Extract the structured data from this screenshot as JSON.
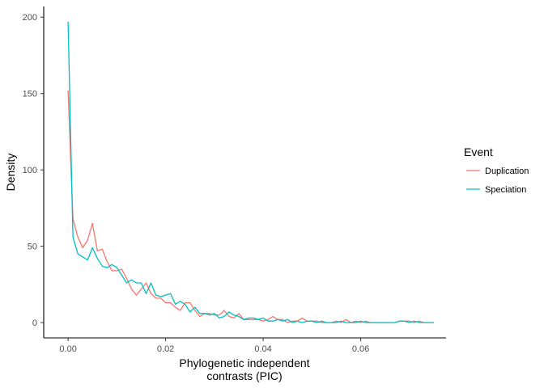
{
  "chart_data": {
    "type": "line",
    "title": "",
    "xlabel_lines": [
      "Phylogenetic independent",
      "contrasts (PIC)"
    ],
    "ylabel": "Density",
    "xlim": [
      -0.005,
      0.0775
    ],
    "ylim": [
      -10,
      207
    ],
    "x_ticks": [
      0.0,
      0.02,
      0.04,
      0.06
    ],
    "x_tick_labels": [
      "0.00",
      "0.02",
      "0.04",
      "0.06"
    ],
    "y_ticks": [
      0,
      50,
      100,
      150,
      200
    ],
    "y_tick_labels": [
      "0",
      "50",
      "100",
      "150",
      "200"
    ],
    "grid": false,
    "legend": {
      "title": "Event",
      "placement": "right",
      "entries": [
        "Duplication",
        "Speciation"
      ]
    },
    "series": [
      {
        "name": "Duplication",
        "color": "#F8766D",
        "x": [
          0.0,
          0.001,
          0.002,
          0.003,
          0.004,
          0.005,
          0.006,
          0.007,
          0.008,
          0.009,
          0.01,
          0.011,
          0.012,
          0.013,
          0.014,
          0.015,
          0.016,
          0.017,
          0.018,
          0.019,
          0.02,
          0.021,
          0.022,
          0.023,
          0.024,
          0.025,
          0.026,
          0.027,
          0.028,
          0.029,
          0.03,
          0.031,
          0.032,
          0.033,
          0.034,
          0.035,
          0.036,
          0.037,
          0.038,
          0.039,
          0.04,
          0.041,
          0.042,
          0.043,
          0.044,
          0.045,
          0.046,
          0.047,
          0.048,
          0.049,
          0.05,
          0.051,
          0.052,
          0.053,
          0.054,
          0.055,
          0.056,
          0.057,
          0.058,
          0.059,
          0.06,
          0.061,
          0.062,
          0.063,
          0.064,
          0.065,
          0.066,
          0.067,
          0.068,
          0.069,
          0.07,
          0.071,
          0.072,
          0.073,
          0.074,
          0.075
        ],
        "values": [
          152,
          68,
          56,
          49,
          54,
          65,
          47,
          48,
          40,
          34,
          34,
          35,
          29,
          22,
          18,
          22,
          26,
          19,
          16,
          16,
          13,
          13,
          10,
          8,
          13,
          13,
          8,
          4,
          6,
          6,
          5,
          5,
          8,
          4,
          3,
          6,
          2,
          2,
          2,
          2,
          1,
          2,
          4,
          2,
          2,
          0,
          1,
          1,
          3,
          1,
          1,
          1,
          0,
          0,
          0,
          1,
          0,
          2,
          0,
          1,
          0,
          1,
          0,
          0,
          0,
          0,
          0,
          0,
          1,
          1,
          1,
          0,
          1,
          0,
          0,
          0
        ]
      },
      {
        "name": "Speciation",
        "color": "#00BFC4",
        "x": [
          0.0,
          0.001,
          0.002,
          0.003,
          0.004,
          0.005,
          0.006,
          0.007,
          0.008,
          0.009,
          0.01,
          0.011,
          0.012,
          0.013,
          0.014,
          0.015,
          0.016,
          0.017,
          0.018,
          0.019,
          0.02,
          0.021,
          0.022,
          0.023,
          0.024,
          0.025,
          0.026,
          0.027,
          0.028,
          0.029,
          0.03,
          0.031,
          0.032,
          0.033,
          0.034,
          0.035,
          0.036,
          0.037,
          0.038,
          0.039,
          0.04,
          0.041,
          0.042,
          0.043,
          0.044,
          0.045,
          0.046,
          0.047,
          0.048,
          0.049,
          0.05,
          0.051,
          0.052,
          0.053,
          0.054,
          0.055,
          0.056,
          0.057,
          0.058,
          0.059,
          0.06,
          0.061,
          0.062,
          0.063,
          0.064,
          0.065,
          0.066,
          0.067,
          0.068,
          0.069,
          0.07,
          0.071,
          0.072,
          0.073,
          0.074,
          0.075
        ],
        "values": [
          197,
          56,
          45,
          43,
          41,
          49,
          42,
          37,
          36,
          38,
          36,
          31,
          26,
          28,
          26,
          26,
          19,
          26,
          18,
          17,
          18,
          19,
          12,
          14,
          12,
          7,
          10,
          6,
          6,
          5,
          6,
          3,
          4,
          7,
          5,
          4,
          2,
          3,
          3,
          2,
          3,
          1,
          1,
          2,
          1,
          2,
          0,
          1,
          0,
          1,
          1,
          0,
          1,
          0,
          0,
          0,
          1,
          0,
          0,
          0,
          1,
          0,
          0,
          0,
          0,
          0,
          0,
          0,
          1,
          1,
          0,
          1,
          0,
          0,
          0,
          0
        ]
      }
    ]
  }
}
